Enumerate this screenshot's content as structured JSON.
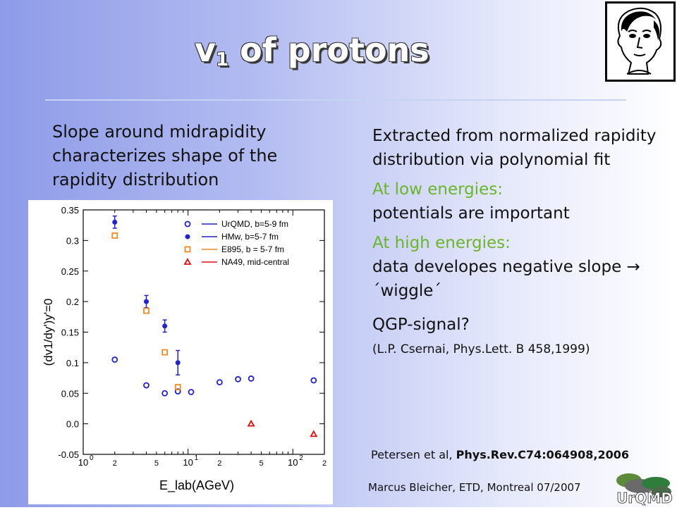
{
  "title": {
    "main": "v",
    "sub": "1",
    "rest": " of protons"
  },
  "left_text": "Slope around midrapidity characterizes shape of the rapidity distribution",
  "right": {
    "p1": "Extracted from normalized rapidity distribution via polynomial fit",
    "p2_head": "At low energies:",
    "p2_body": "potentials are important",
    "p3_head": "At high energies:",
    "p3_body": "data developes negative slope → ´wiggle´",
    "p4": "QGP-signal?",
    "p5": "(L.P. Csernai,  Phys.Lett.  B 458,1999)"
  },
  "reference": {
    "authors": "Petersen et al, ",
    "journal": "Phys.Rev.C74:064908,2006"
  },
  "footer": "Marcus Bleicher, ETD, Montreal 07/2007",
  "logo_text": "UrQMD",
  "colors": {
    "accent_green": "#6ab52d",
    "blue": "#2222cc",
    "orange": "#f08a24",
    "red": "#e01010"
  },
  "chart_data": {
    "type": "scatter",
    "xlabel": "E_lab(AGeV)",
    "ylabel": "(dv1/dy')y'=0",
    "xscale": "log",
    "xlim": [
      1,
      200
    ],
    "ylim": [
      -0.05,
      0.35
    ],
    "yticks": [
      "-0.05",
      "0.0",
      "0.05",
      "0.1",
      "0.15",
      "0.2",
      "0.25",
      "0.3",
      "0.35"
    ],
    "xtick_labels": [
      {
        "x": 1,
        "text": "10",
        "exp": "0"
      },
      {
        "x": 2,
        "text": "2"
      },
      {
        "x": 5,
        "text": "5"
      },
      {
        "x": 10,
        "text": "10",
        "exp": "1"
      },
      {
        "x": 20,
        "text": "2"
      },
      {
        "x": 50,
        "text": "5"
      },
      {
        "x": 100,
        "text": "10",
        "exp": "2"
      },
      {
        "x": 200,
        "text": "2"
      }
    ],
    "legend_position": "top-right",
    "series": [
      {
        "name": "UrQMD, b=5-9 fm",
        "marker": "open-circle",
        "color": "#2222cc",
        "x": [
          2,
          4,
          6,
          8,
          10.7,
          20,
          30,
          40,
          158
        ],
        "y": [
          0.105,
          0.063,
          0.05,
          0.053,
          0.052,
          0.068,
          0.073,
          0.074,
          0.071
        ]
      },
      {
        "name": "HMw, b=5-7 fm",
        "marker": "filled-circle",
        "color": "#2222cc",
        "x": [
          2,
          4,
          6,
          8
        ],
        "y": [
          0.33,
          0.2,
          0.16,
          0.1
        ],
        "err": [
          0.01,
          0.01,
          0.01,
          0.02
        ]
      },
      {
        "name": "E895, b = 5-7 fm",
        "marker": "open-square",
        "color": "#f08a24",
        "x": [
          2,
          4,
          6,
          8
        ],
        "y": [
          0.308,
          0.185,
          0.117,
          0.06
        ]
      },
      {
        "name": "NA49, mid-central",
        "marker": "open-triangle",
        "color": "#e01010",
        "x": [
          40,
          158
        ],
        "y": [
          0.0,
          -0.017
        ]
      }
    ]
  }
}
